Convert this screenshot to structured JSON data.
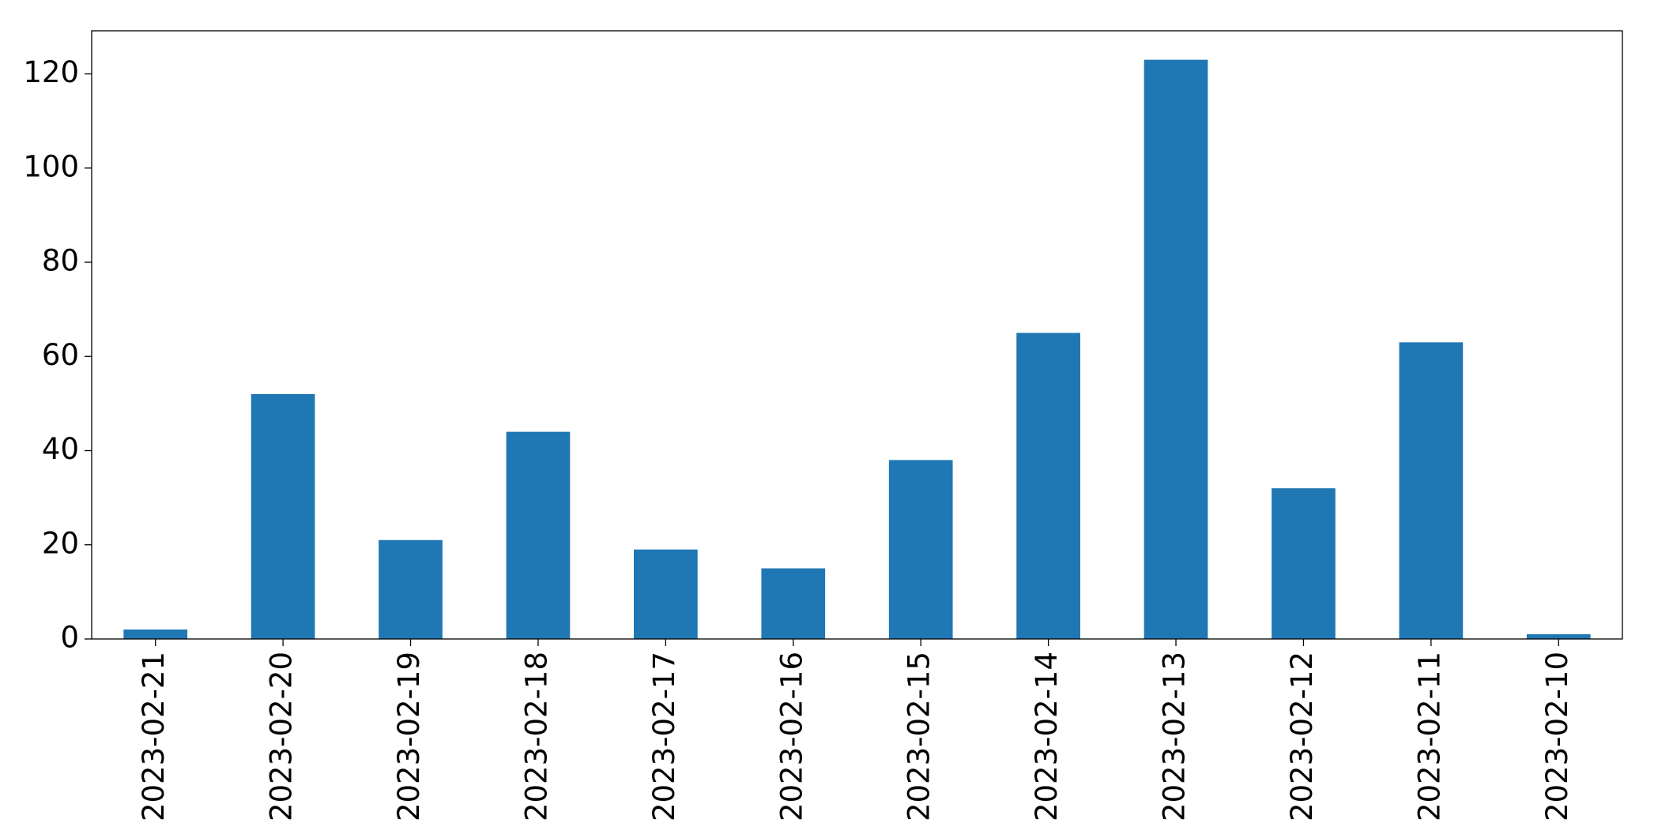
{
  "chart_data": {
    "type": "bar",
    "categories": [
      "2023-02-21",
      "2023-02-20",
      "2023-02-19",
      "2023-02-18",
      "2023-02-17",
      "2023-02-16",
      "2023-02-15",
      "2023-02-14",
      "2023-02-13",
      "2023-02-12",
      "2023-02-11",
      "2023-02-10"
    ],
    "values": [
      2,
      52,
      21,
      44,
      19,
      15,
      38,
      65,
      123,
      32,
      63,
      1
    ],
    "color": "#1f77b4",
    "ylim": [
      0,
      129.15
    ],
    "yticks": [
      0,
      20,
      40,
      60,
      80,
      100,
      120
    ],
    "grid": false
  }
}
